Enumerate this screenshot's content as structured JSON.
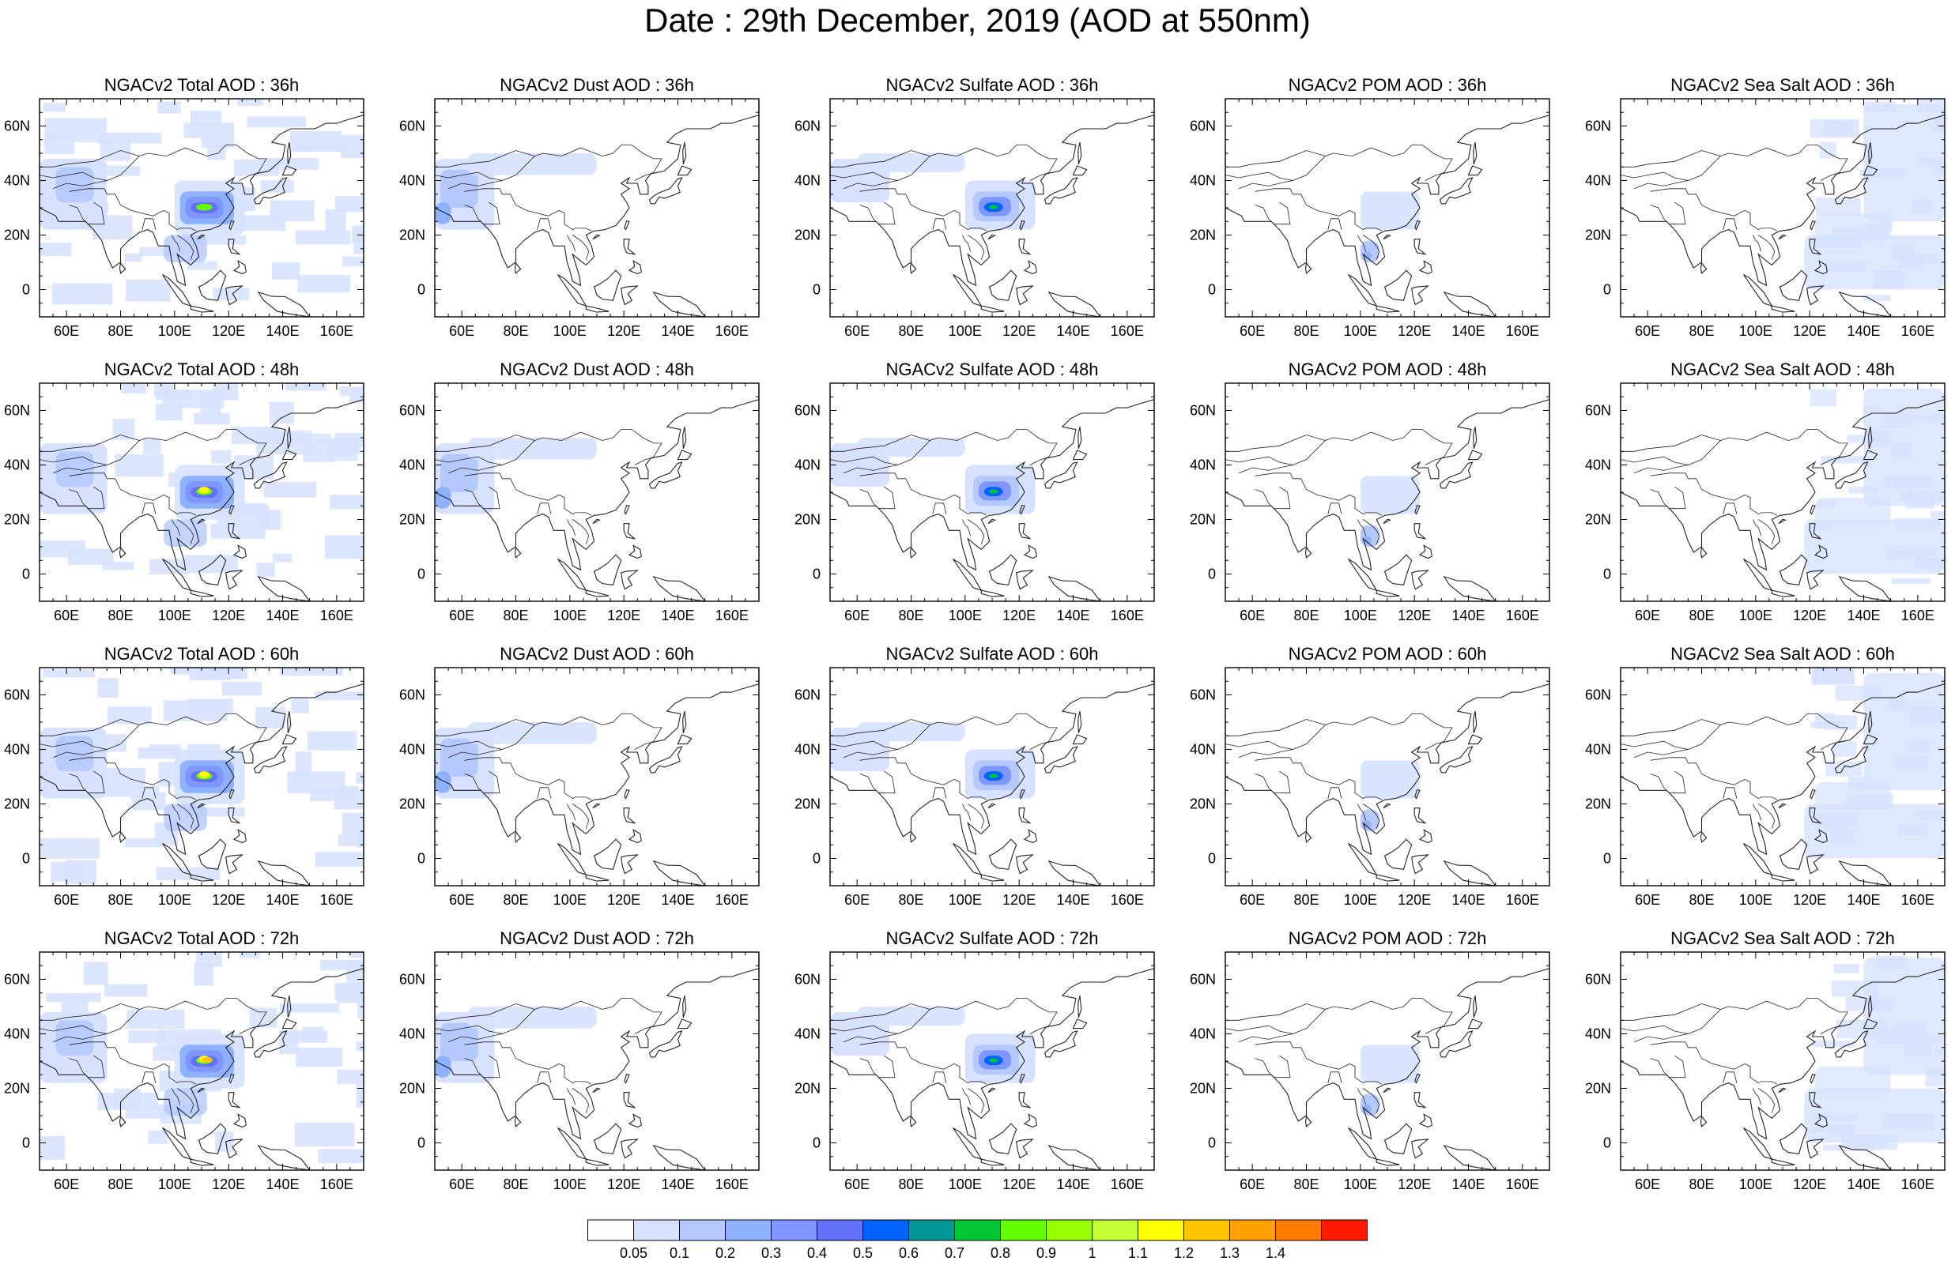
{
  "title": "Date : 29th December, 2019 (AOD at 550nm)",
  "map": {
    "lon_ticks": [
      "60E",
      "80E",
      "100E",
      "120E",
      "140E",
      "160E"
    ],
    "lat_ticks": [
      "60N",
      "40N",
      "20N",
      "0"
    ],
    "extent": {
      "lon": [
        50,
        170
      ],
      "lat": [
        -10,
        70
      ]
    }
  },
  "panels": [
    [
      {
        "title": "NGACv2 Total AOD : 36h",
        "species": "total"
      },
      {
        "title": "NGACv2 Dust AOD : 36h",
        "species": "dust"
      },
      {
        "title": "NGACv2 Sulfate AOD : 36h",
        "species": "sulfate"
      },
      {
        "title": "NGACv2 POM AOD : 36h",
        "species": "pom"
      },
      {
        "title": "NGACv2 Sea Salt AOD : 36h",
        "species": "seasalt"
      }
    ],
    [
      {
        "title": "NGACv2 Total AOD : 48h",
        "species": "total"
      },
      {
        "title": "NGACv2 Dust AOD : 48h",
        "species": "dust"
      },
      {
        "title": "NGACv2 Sulfate AOD : 48h",
        "species": "sulfate"
      },
      {
        "title": "NGACv2 POM AOD : 48h",
        "species": "pom"
      },
      {
        "title": "NGACv2 Sea Salt AOD : 48h",
        "species": "seasalt"
      }
    ],
    [
      {
        "title": "NGACv2 Total AOD : 60h",
        "species": "total"
      },
      {
        "title": "NGACv2 Dust AOD : 60h",
        "species": "dust"
      },
      {
        "title": "NGACv2 Sulfate AOD : 60h",
        "species": "sulfate"
      },
      {
        "title": "NGACv2 POM AOD : 60h",
        "species": "pom"
      },
      {
        "title": "NGACv2 Sea Salt AOD : 60h",
        "species": "seasalt"
      }
    ],
    [
      {
        "title": "NGACv2 Total AOD : 72h",
        "species": "total"
      },
      {
        "title": "NGACv2 Dust AOD : 72h",
        "species": "dust"
      },
      {
        "title": "NGACv2 Sulfate AOD : 72h",
        "species": "sulfate"
      },
      {
        "title": "NGACv2 POM AOD : 72h",
        "species": "pom"
      },
      {
        "title": "NGACv2 Sea Salt  AOD : 72h",
        "species": "seasalt"
      }
    ]
  ],
  "colorbar": {
    "labels": [
      "0.05",
      "0.1",
      "0.2",
      "0.3",
      "0.4",
      "0.5",
      "0.6",
      "0.7",
      "0.8",
      "0.9",
      "1",
      "1.1",
      "1.2",
      "1.3",
      "1.4"
    ],
    "colors": [
      "#ffffff",
      "#d6e2ff",
      "#b5c9ff",
      "#8eb2ff",
      "#7f96ff",
      "#6370f8",
      "#0063ff",
      "#009696",
      "#00c633",
      "#63ff00",
      "#96ff00",
      "#c6ff33",
      "#ffff00",
      "#ffc600",
      "#ffa000",
      "#ff7c00",
      "#ff1900"
    ]
  }
}
